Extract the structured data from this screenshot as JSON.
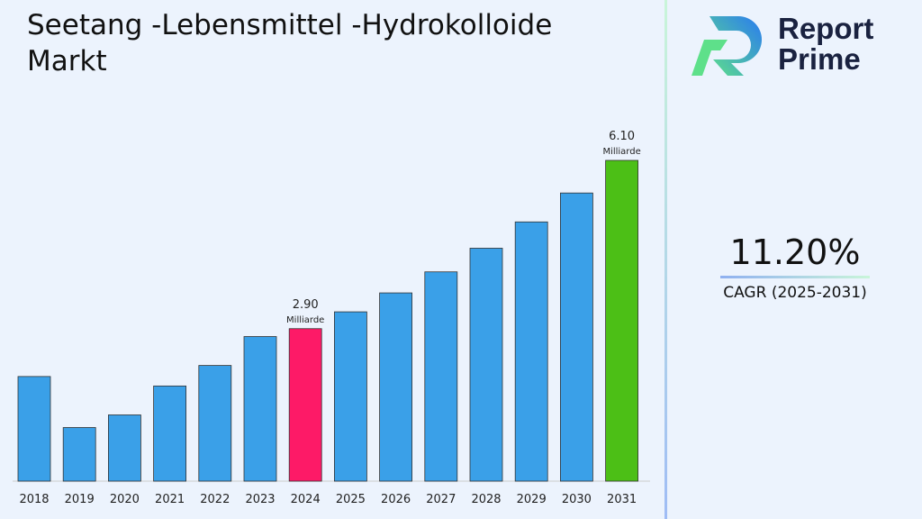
{
  "title": "Seetang -Lebensmittel -Hydrokolloide Markt",
  "logo": {
    "line1": "Report",
    "line2": "Prime"
  },
  "cagr": {
    "value": "11.20%",
    "label": "CAGR (2025-2031)"
  },
  "chart_data": {
    "type": "bar",
    "categories": [
      "2018",
      "2019",
      "2020",
      "2021",
      "2022",
      "2023",
      "2024",
      "2025",
      "2026",
      "2027",
      "2028",
      "2029",
      "2030",
      "2031"
    ],
    "values": [
      1.99,
      1.02,
      1.26,
      1.81,
      2.2,
      2.75,
      2.9,
      3.22,
      3.58,
      3.98,
      4.43,
      4.93,
      5.48,
      6.1
    ],
    "colors": [
      "#3aa0e8",
      "#3aa0e8",
      "#3aa0e8",
      "#3aa0e8",
      "#3aa0e8",
      "#3aa0e8",
      "#fd1a67",
      "#3aa0e8",
      "#3aa0e8",
      "#3aa0e8",
      "#3aa0e8",
      "#3aa0e8",
      "#3aa0e8",
      "#4cbf16"
    ],
    "annotations": [
      {
        "category": "2024",
        "value": "2.90",
        "unit": "Milliarde"
      },
      {
        "category": "2031",
        "value": "6.10",
        "unit": "Milliarde"
      }
    ],
    "ylim": [
      0,
      6.1
    ],
    "grid": false,
    "xlabel": "",
    "ylabel": ""
  }
}
